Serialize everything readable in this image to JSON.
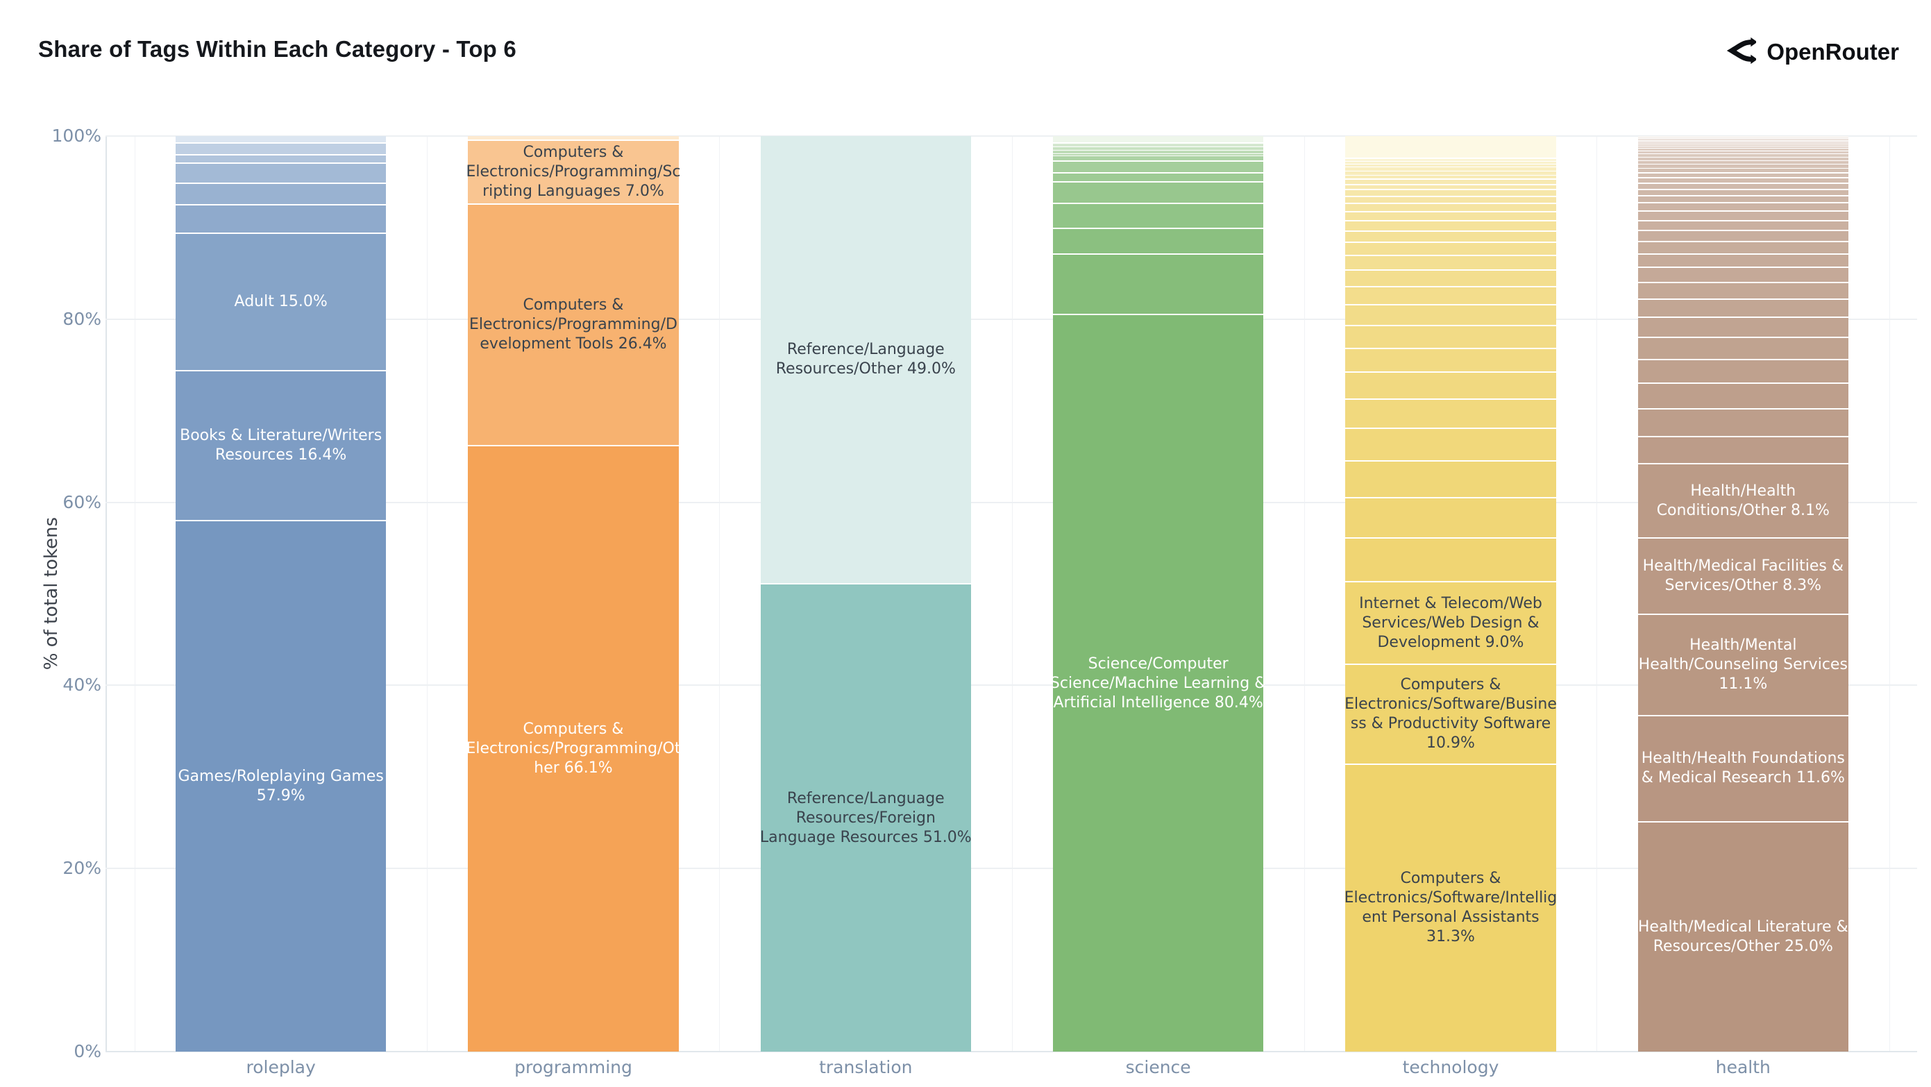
{
  "header": {
    "title": "Share of Tags Within Each Category - Top 6",
    "brand": "OpenRouter"
  },
  "colors": {
    "title_text": "#15181d",
    "axis_text": "#7d90a8",
    "axis_title_text": "#3d434c",
    "grid_line": "#edf0f3",
    "axis_line": "#dfe5ea",
    "segment_separator": "#ffffff",
    "dark_label_text": "#3a434d",
    "light_label_text": "#ffffff"
  },
  "chart_data": {
    "type": "bar",
    "stacked": true,
    "title": "Share of Tags Within Each Category - Top 6",
    "xlabel": "",
    "ylabel": "% of total tokens",
    "ylim": [
      0,
      100
    ],
    "grid": true,
    "legend": "none",
    "yticks": [
      "0%",
      "20%",
      "40%",
      "60%",
      "80%",
      "100%"
    ],
    "categories": [
      "roleplay",
      "programming",
      "translation",
      "science",
      "technology",
      "health"
    ],
    "bars": [
      {
        "category": "roleplay",
        "light_color": "#dce6f1",
        "base_color": "#7697c0",
        "segments": [
          {
            "value": 0.8
          },
          {
            "value": 1.3
          },
          {
            "value": 0.9
          },
          {
            "value": 2.2
          },
          {
            "value": 2.4
          },
          {
            "value": 3.1
          },
          {
            "value": 15.0,
            "label": "Adult 15.0%",
            "text": "light"
          },
          {
            "value": 16.4,
            "label": "Books & Literature/Writers Resources 16.4%",
            "text": "light"
          },
          {
            "value": 57.9,
            "label": "Games/Roleplaying Games 57.9%",
            "text": "light"
          }
        ]
      },
      {
        "category": "programming",
        "light_color": "#fdead0",
        "base_color": "#f5a356",
        "segments": [
          {
            "value": 0.5
          },
          {
            "value": 7.0,
            "label": "Computers & Electronics/Programming/Scripting Languages 7.0%",
            "text": "dark"
          },
          {
            "value": 26.4,
            "label": "Computers & Electronics/Programming/Development Tools 26.4%",
            "text": "dark"
          },
          {
            "value": 66.1,
            "label": "Computers & Electronics/Programming/Other 66.1%",
            "text": "light"
          }
        ]
      },
      {
        "category": "translation",
        "light_color": "#dcedeb",
        "base_color": "#90c6c0",
        "segments": [
          {
            "value": 49.0,
            "label": "Reference/Language Resources/Other 49.0%",
            "text": "dark"
          },
          {
            "value": 51.0,
            "label": "Reference/Language Resources/Foreign Language Resources 51.0%",
            "text": "dark"
          }
        ]
      },
      {
        "category": "science",
        "light_color": "#eef6eb",
        "base_color": "#80ba74",
        "segments": [
          {
            "value": 0.8
          },
          {
            "value": 0.4
          },
          {
            "value": 0.4
          },
          {
            "value": 0.4
          },
          {
            "value": 0.2
          },
          {
            "value": 0.6
          },
          {
            "value": 1.3
          },
          {
            "value": 1.0
          },
          {
            "value": 2.3
          },
          {
            "value": 2.8
          },
          {
            "value": 2.8
          },
          {
            "value": 6.6
          },
          {
            "value": 80.4,
            "label": "Science/Computer Science/Machine Learning & Artificial Intelligence 80.4%",
            "text": "light"
          }
        ]
      },
      {
        "category": "technology",
        "light_color": "#fdf9e4",
        "base_color": "#efd36c",
        "segments": [
          {
            "value": 2.5
          },
          {
            "value": 0.3
          },
          {
            "value": 0.3
          },
          {
            "value": 0.35
          },
          {
            "value": 0.4
          },
          {
            "value": 0.45
          },
          {
            "value": 0.5
          },
          {
            "value": 0.55
          },
          {
            "value": 0.6
          },
          {
            "value": 0.7
          },
          {
            "value": 0.8
          },
          {
            "value": 0.9
          },
          {
            "value": 1.0
          },
          {
            "value": 1.1
          },
          {
            "value": 1.25
          },
          {
            "value": 1.4
          },
          {
            "value": 1.6
          },
          {
            "value": 1.8
          },
          {
            "value": 2.0
          },
          {
            "value": 2.3
          },
          {
            "value": 2.5
          },
          {
            "value": 2.6
          },
          {
            "value": 2.9
          },
          {
            "value": 3.2
          },
          {
            "value": 3.6
          },
          {
            "value": 4.0
          },
          {
            "value": 4.4
          },
          {
            "value": 4.8
          },
          {
            "value": 9.0,
            "label": "Internet & Telecom/Web Services/Web Design & Development 9.0%",
            "text": "dark"
          },
          {
            "value": 10.9,
            "label": "Computers & Electronics/Software/Business & Productivity Software 10.9%",
            "text": "dark"
          },
          {
            "value": 31.3,
            "label": "Computers & Electronics/Software/Intelligent Personal Assistants 31.3%",
            "text": "dark"
          }
        ]
      },
      {
        "category": "health",
        "light_color": "#f5f0ec",
        "base_color": "#b79580",
        "segments": [
          {
            "value": 0.15
          },
          {
            "value": 0.15
          },
          {
            "value": 0.2
          },
          {
            "value": 0.2
          },
          {
            "value": 0.2
          },
          {
            "value": 0.25
          },
          {
            "value": 0.25
          },
          {
            "value": 0.3
          },
          {
            "value": 0.3
          },
          {
            "value": 0.35
          },
          {
            "value": 0.4
          },
          {
            "value": 0.4
          },
          {
            "value": 0.45
          },
          {
            "value": 0.5
          },
          {
            "value": 0.55
          },
          {
            "value": 0.6
          },
          {
            "value": 0.65
          },
          {
            "value": 0.7
          },
          {
            "value": 0.8
          },
          {
            "value": 0.9
          },
          {
            "value": 1.0
          },
          {
            "value": 1.1
          },
          {
            "value": 1.2
          },
          {
            "value": 1.35
          },
          {
            "value": 1.5
          },
          {
            "value": 1.65
          },
          {
            "value": 1.8
          },
          {
            "value": 2.0
          },
          {
            "value": 2.2
          },
          {
            "value": 2.4
          },
          {
            "value": 2.6
          },
          {
            "value": 2.8
          },
          {
            "value": 3.0
          },
          {
            "value": 3.0
          },
          {
            "value": 8.1,
            "label": "Health/Health Conditions/Other 8.1%",
            "text": "light"
          },
          {
            "value": 8.3,
            "label": "Health/Medical Facilities & Services/Other 8.3%",
            "text": "light"
          },
          {
            "value": 11.1,
            "label": "Health/Mental Health/Counseling Services 11.1%",
            "text": "light"
          },
          {
            "value": 11.6,
            "label": "Health/Health Foundations & Medical Research 11.6%",
            "text": "light"
          },
          {
            "value": 25.0,
            "label": "Health/Medical Literature & Resources/Other 25.0%",
            "text": "light"
          }
        ]
      }
    ]
  }
}
